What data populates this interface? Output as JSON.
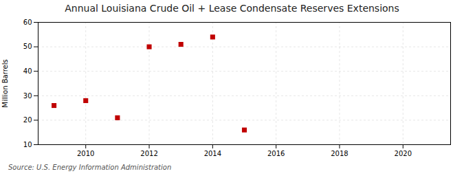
{
  "chart_data": {
    "type": "scatter",
    "title": "Annual Louisiana Crude Oil + Lease Condensate Reserves Extensions",
    "ylabel": "Million Barrels",
    "source": "Source: U.S. Energy Information Administration",
    "x": [
      2009,
      2010,
      2011,
      2012,
      2013,
      2014,
      2015
    ],
    "values": [
      26,
      28,
      21,
      50,
      51,
      54,
      16
    ],
    "color": "#c00000",
    "marker": "square",
    "xlim": [
      2008.5,
      2021.5
    ],
    "ylim": [
      10,
      60
    ],
    "xticks": [
      2010,
      2012,
      2014,
      2016,
      2018,
      2020
    ],
    "yticks": [
      10,
      20,
      30,
      40,
      50,
      60
    ],
    "grid": true
  }
}
